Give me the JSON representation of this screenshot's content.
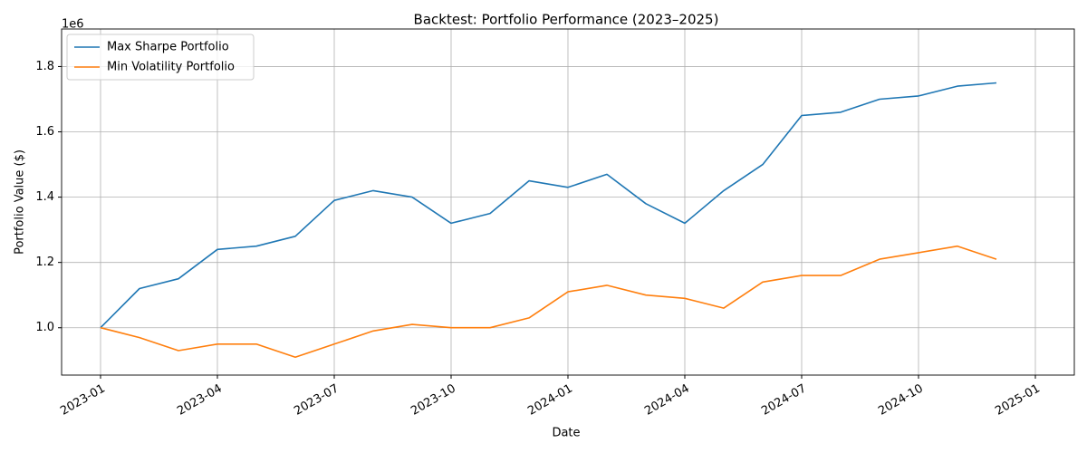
{
  "chart_data": {
    "type": "line",
    "title": "Backtest: Portfolio Performance (2023–2025)",
    "x_label": "Date",
    "y_label": "Portfolio Value ($)",
    "y_offset_label": "1e6",
    "x": [
      "2023-01",
      "2023-02",
      "2023-03",
      "2023-04",
      "2023-05",
      "2023-06",
      "2023-07",
      "2023-08",
      "2023-09",
      "2023-10",
      "2023-11",
      "2023-12",
      "2024-01",
      "2024-02",
      "2024-03",
      "2024-04",
      "2024-05",
      "2024-06",
      "2024-07",
      "2024-08",
      "2024-09",
      "2024-10",
      "2024-11",
      "2024-12"
    ],
    "series": [
      {
        "name": "Max Sharpe Portfolio",
        "color": "#1f77b4",
        "values": [
          1000000,
          1120000,
          1150000,
          1240000,
          1250000,
          1280000,
          1390000,
          1420000,
          1400000,
          1320000,
          1350000,
          1450000,
          1430000,
          1470000,
          1380000,
          1320000,
          1420000,
          1500000,
          1650000,
          1660000,
          1700000,
          1710000,
          1740000,
          1750000
        ]
      },
      {
        "name": "Min Volatility Portfolio",
        "color": "#ff7f0e",
        "values": [
          1000000,
          970000,
          930000,
          950000,
          950000,
          910000,
          950000,
          990000,
          1010000,
          1000000,
          1000000,
          1030000,
          1110000,
          1130000,
          1100000,
          1090000,
          1060000,
          1140000,
          1160000,
          1160000,
          1210000,
          1230000,
          1250000,
          1210000
        ]
      }
    ],
    "xlim": [
      "2022-12",
      "2025-02"
    ],
    "xticks": [
      "2023-01",
      "2023-04",
      "2023-07",
      "2023-10",
      "2024-01",
      "2024-04",
      "2024-07",
      "2024-10",
      "2025-01"
    ],
    "ylim": [
      855000,
      1915000
    ],
    "yticks": [
      {
        "value": 1000000,
        "label": "1.0"
      },
      {
        "value": 1200000,
        "label": "1.2"
      },
      {
        "value": 1400000,
        "label": "1.4"
      },
      {
        "value": 1600000,
        "label": "1.6"
      },
      {
        "value": 1800000,
        "label": "1.8"
      }
    ],
    "grid": true,
    "legend": "upper left"
  }
}
